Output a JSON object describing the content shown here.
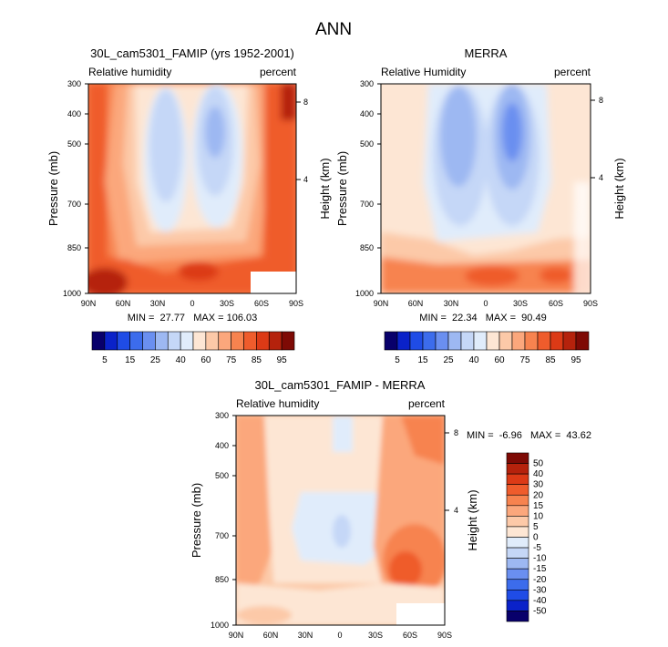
{
  "figure": {
    "title": "ANN"
  },
  "colors": {
    "diverging": [
      "#08006b",
      "#0a22c9",
      "#1f4ce6",
      "#3c6cec",
      "#6a8ff0",
      "#9db8f2",
      "#c5d7f7",
      "#e0ecfb",
      "#fde6d4",
      "#fcc9a8",
      "#fba77c",
      "#f7834f",
      "#ef5c2c",
      "#dc3a16",
      "#b5220c",
      "#7e0a05"
    ]
  },
  "common": {
    "y_label_left": "Pressure (mb)",
    "y_label_right": "Height (km)",
    "field_label": "Relative humidity",
    "units": "percent",
    "pressure_ticks": [
      "300",
      "400",
      "500",
      "700",
      "850",
      "1000"
    ],
    "height_ticks": [
      "8",
      "4"
    ],
    "lat_ticks": [
      "90N",
      "60N",
      "30N",
      "0",
      "30S",
      "60S",
      "90S"
    ]
  },
  "panels": {
    "model": {
      "title": "30L_cam5301_FAMIP (yrs 1952-2001)",
      "field_label": "Relative humidity",
      "units": "percent",
      "stats": "MIN =  27.77   MAX = 106.03",
      "colorbar": {
        "labels": [
          "5",
          "15",
          "25",
          "40",
          "60",
          "75",
          "85",
          "95"
        ]
      }
    },
    "obs": {
      "title": "MERRA",
      "field_label": "Relative Humidity",
      "units": "percent",
      "stats": "MIN =  22.34   MAX =  90.49",
      "colorbar": {
        "labels": [
          "5",
          "15",
          "25",
          "40",
          "60",
          "75",
          "85",
          "95"
        ]
      }
    },
    "diff": {
      "title": "30L_cam5301_FAMIP - MERRA",
      "field_label": "Relative humidity",
      "units": "percent",
      "stats": "MIN =  -6.96   MAX =  43.62",
      "colorbar": {
        "labels": [
          "50",
          "40",
          "30",
          "20",
          "15",
          "10",
          "5",
          "0",
          "-5",
          "-10",
          "-15",
          "-20",
          "-30",
          "-40",
          "-50"
        ]
      }
    }
  },
  "chart_data": [
    {
      "type": "heatmap",
      "title": "30L_cam5301_FAMIP (yrs 1952-2001)",
      "subtitle_left": "Relative humidity",
      "subtitle_right": "percent",
      "ylabel": "Pressure (mb)",
      "ylabel_right": "Height (km)",
      "x_ticks": [
        "90N",
        "60N",
        "30N",
        "0",
        "30S",
        "60S",
        "90S"
      ],
      "y_ticks": [
        "300",
        "400",
        "500",
        "700",
        "850",
        "1000"
      ],
      "y_log_scale": true,
      "ylim": [
        1000,
        300
      ],
      "min": 27.77,
      "max": 106.03,
      "contour_levels": [
        5,
        10,
        15,
        20,
        25,
        30,
        40,
        50,
        60,
        70,
        75,
        80,
        85,
        90,
        95
      ],
      "colorbar_labels": [
        5,
        15,
        25,
        40,
        60,
        75,
        85,
        95
      ]
    },
    {
      "type": "heatmap",
      "title": "MERRA",
      "subtitle_left": "Relative Humidity",
      "subtitle_right": "percent",
      "ylabel": "Pressure (mb)",
      "ylabel_right": "Height (km)",
      "x_ticks": [
        "90N",
        "60N",
        "30N",
        "0",
        "30S",
        "60S",
        "90S"
      ],
      "y_ticks": [
        "300",
        "400",
        "500",
        "700",
        "850",
        "1000"
      ],
      "y_log_scale": true,
      "ylim": [
        1000,
        300
      ],
      "min": 22.34,
      "max": 90.49,
      "contour_levels": [
        5,
        10,
        15,
        20,
        25,
        30,
        40,
        50,
        60,
        70,
        75,
        80,
        85,
        90,
        95
      ],
      "colorbar_labels": [
        5,
        15,
        25,
        40,
        60,
        75,
        85,
        95
      ]
    },
    {
      "type": "heatmap",
      "title": "30L_cam5301_FAMIP - MERRA",
      "subtitle_left": "Relative humidity",
      "subtitle_right": "percent",
      "ylabel": "Pressure (mb)",
      "ylabel_right": "Height (km)",
      "x_ticks": [
        "90N",
        "60N",
        "30N",
        "0",
        "30S",
        "60S",
        "90S"
      ],
      "y_ticks": [
        "300",
        "400",
        "500",
        "700",
        "850",
        "1000"
      ],
      "y_log_scale": true,
      "ylim": [
        1000,
        300
      ],
      "min": -6.96,
      "max": 43.62,
      "contour_levels": [
        -50,
        -40,
        -30,
        -20,
        -15,
        -10,
        -5,
        0,
        5,
        10,
        15,
        20,
        30,
        40,
        50
      ],
      "colorbar_labels": [
        50,
        40,
        30,
        20,
        15,
        10,
        5,
        0,
        -5,
        -10,
        -15,
        -20,
        -30,
        -40,
        -50
      ]
    }
  ]
}
